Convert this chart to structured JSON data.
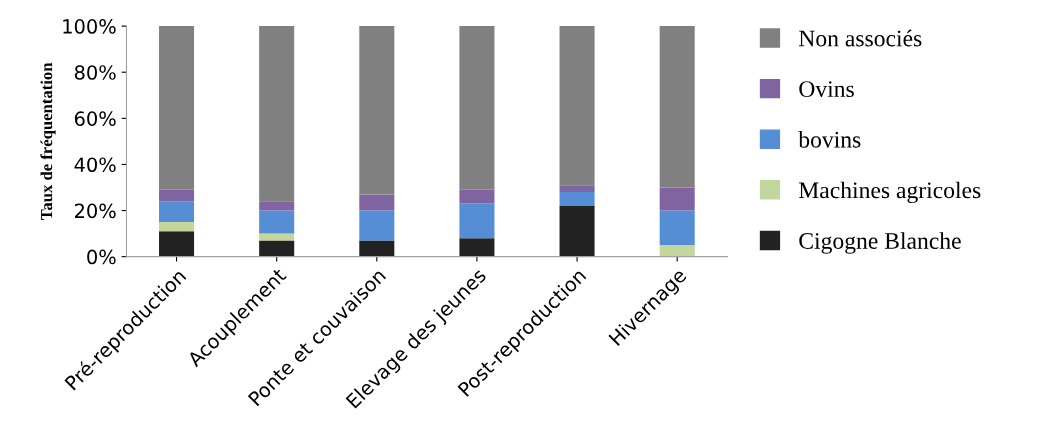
{
  "chart_data": {
    "type": "bar",
    "stacked": true,
    "ylabel": "Taux de fréquentation",
    "categories": [
      "Pré-reproduction",
      "Acouplement",
      "Ponte et couvaison",
      "Elevage des jeunes",
      "Post-reproduction",
      "Hivernage"
    ],
    "series": [
      {
        "name": "Cigogne Blanche",
        "color": "#222222",
        "values": [
          11,
          7,
          7,
          8,
          22,
          0
        ]
      },
      {
        "name": "Machines agricoles",
        "color": "#c3d69b",
        "values": [
          4,
          3,
          0,
          0,
          0,
          5
        ]
      },
      {
        "name": "bovins",
        "color": "#558ed5",
        "values": [
          9,
          10,
          13,
          15,
          6,
          15
        ]
      },
      {
        "name": "Ovins",
        "color": "#8064a2",
        "values": [
          5,
          4,
          7,
          6,
          3,
          10
        ]
      },
      {
        "name": "Non associés",
        "color": "#808080",
        "values": [
          71,
          76,
          73,
          71,
          69,
          70
        ]
      }
    ],
    "ylim": [
      0,
      100
    ],
    "yticks": [
      {
        "value": 0,
        "label": "0%"
      },
      {
        "value": 20,
        "label": "20%"
      },
      {
        "value": 40,
        "label": "40%"
      },
      {
        "value": 60,
        "label": "60%"
      },
      {
        "value": 80,
        "label": "80%"
      },
      {
        "value": 100,
        "label": "100%"
      }
    ],
    "grid": false,
    "legend": "right"
  }
}
